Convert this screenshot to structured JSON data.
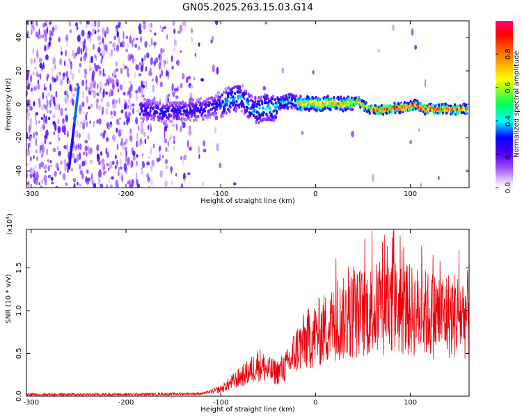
{
  "title": "GN05.2025.263.15.03.G14",
  "chart_data": [
    {
      "type": "heatmap",
      "xlabel": "Height of straight line (km)",
      "ylabel": "Frequency (Hz)",
      "xlim": [
        -305,
        162
      ],
      "ylim": [
        -50,
        50
      ],
      "xticks": [
        -300,
        -200,
        -100,
        0,
        100
      ],
      "yticks": [
        -40,
        -20,
        0,
        20,
        40
      ],
      "colorbar": {
        "label": "Normalized spectral amplitude",
        "range": [
          0,
          1
        ],
        "ticks": [
          0.0,
          0.2,
          0.4,
          0.6,
          0.8
        ],
        "tick_labels": [
          "0.0",
          "0.2",
          "0.4",
          "0.6",
          "0.8"
        ],
        "colormap": [
          "#ffffff",
          "#e6ccff",
          "#9d4dff",
          "#5500ff",
          "#0000ff",
          "#00ffff",
          "#00ff55",
          "#ffff00",
          "#ff7700",
          "#ff0000",
          "#ff0077"
        ]
      },
      "ridge": {
        "x": [
          -185,
          -160,
          -140,
          -120,
          -100,
          -90,
          -80,
          -75,
          -65,
          -55,
          -45,
          -35,
          -25,
          -15,
          -5,
          5,
          15,
          25,
          35,
          45,
          55,
          65,
          75,
          85,
          95,
          105,
          115,
          125,
          135,
          145,
          160
        ],
        "y": [
          -3,
          -5,
          -4,
          -3,
          0,
          3,
          5,
          2,
          -4,
          -2,
          -2,
          1,
          2,
          0,
          1,
          0,
          1,
          0,
          0,
          2,
          -2,
          -4,
          -3,
          -2,
          -2,
          0,
          -3,
          -3,
          -3,
          -3,
          -3
        ]
      },
      "streak": {
        "x": [
          -260,
          -250
        ],
        "y": [
          -38,
          10
        ]
      }
    },
    {
      "type": "line",
      "xlabel": "Height of straight line (km)",
      "ylabel": "SNR (10 * v/v)",
      "yscale_label": "(x10",
      "yscale_exp": "4",
      "yscale_close": ")",
      "xlim": [
        -305,
        162
      ],
      "ylim": [
        0,
        1.95
      ],
      "xticks": [
        -300,
        -200,
        -100,
        0,
        100
      ],
      "yticks": [
        0.0,
        0.5,
        1.0,
        1.5
      ],
      "ytick_labels": [
        "0.0",
        "0.5",
        "1.0",
        "1.5"
      ],
      "color": "#e8000b",
      "envelope": {
        "x": [
          -305,
          -200,
          -120,
          -100,
          -80,
          -70,
          -60,
          -50,
          -40,
          -30,
          -20,
          -10,
          0,
          20,
          40,
          60,
          80,
          100,
          120,
          140,
          162
        ],
        "y": [
          0.02,
          0.02,
          0.03,
          0.08,
          0.22,
          0.28,
          0.38,
          0.3,
          0.28,
          0.36,
          0.55,
          0.65,
          0.72,
          0.85,
          0.95,
          1.0,
          1.05,
          1.0,
          0.95,
          0.95,
          0.95
        ]
      }
    }
  ]
}
